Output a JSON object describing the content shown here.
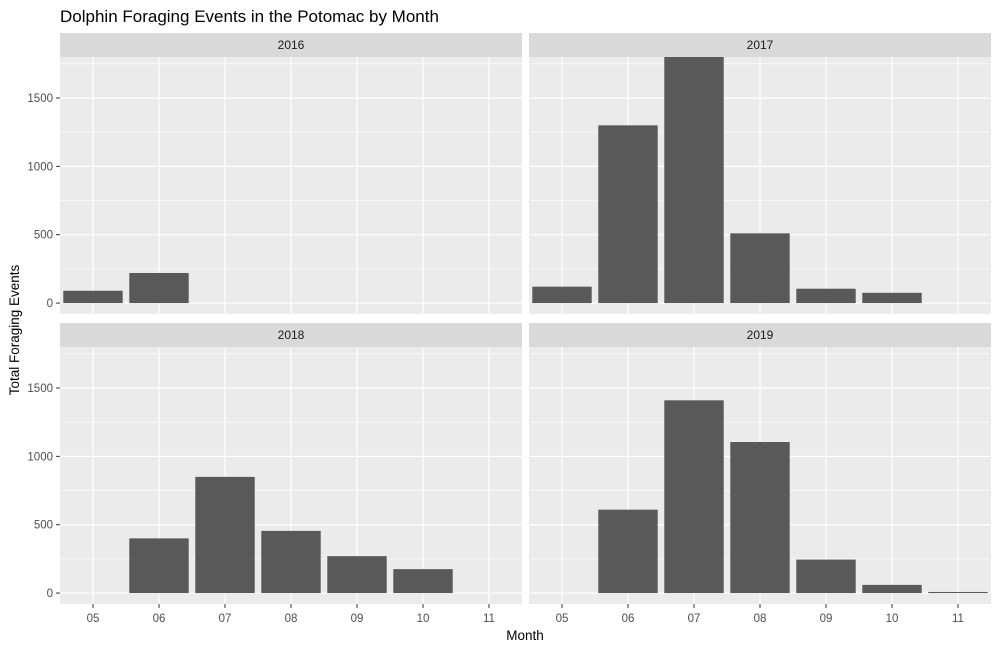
{
  "chart_data": {
    "type": "bar",
    "title": "Dolphin Foraging Events in the Potomac by Month",
    "xlabel": "Month",
    "ylabel": "Total Foraging Events",
    "categories": [
      "05",
      "06",
      "07",
      "08",
      "09",
      "10",
      "11"
    ],
    "ylim": [
      -80,
      1800
    ],
    "yticks": [
      0,
      500,
      1000,
      1500
    ],
    "grid": true,
    "facet_layout": "2x2",
    "facets": [
      {
        "label": "2016",
        "values": [
          90,
          220,
          null,
          null,
          null,
          null,
          null
        ]
      },
      {
        "label": "2017",
        "values": [
          120,
          1300,
          1800,
          510,
          105,
          75,
          null
        ]
      },
      {
        "label": "2018",
        "values": [
          null,
          400,
          850,
          455,
          270,
          175,
          null
        ]
      },
      {
        "label": "2019",
        "values": [
          null,
          610,
          1410,
          1105,
          245,
          60,
          8
        ]
      }
    ],
    "colors": {
      "bar": "#595959",
      "panel_bg": "#ebebeb",
      "strip_bg": "#d9d9d9",
      "grid": "#ffffff"
    }
  }
}
